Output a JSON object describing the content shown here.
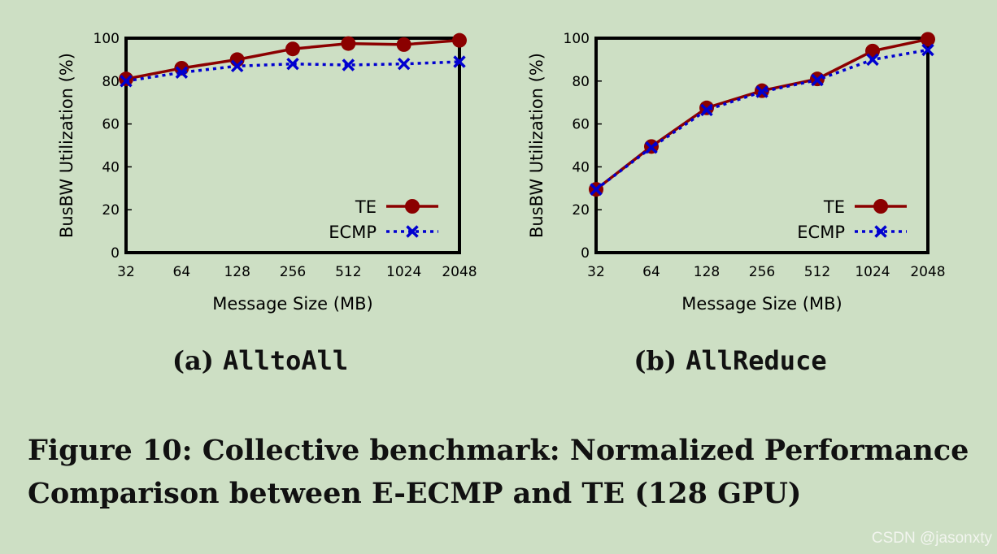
{
  "chart_data": [
    {
      "type": "line",
      "subtitle_prefix": "(a)",
      "subtitle_name": "AlltoAll",
      "xlabel": "Message Size (MB)",
      "ylabel": "BusBW Utilization (%)",
      "categories": [
        "32",
        "64",
        "128",
        "256",
        "512",
        "1024",
        "2048"
      ],
      "ylim": [
        0,
        100
      ],
      "yticks": [
        "0",
        "20",
        "40",
        "60",
        "80",
        "100"
      ],
      "legend_position": "bottom-right",
      "grid": false,
      "series": [
        {
          "name": "TE",
          "values": [
            81,
            86,
            90,
            95,
            97.5,
            97,
            99
          ],
          "color": "#8b0000",
          "marker": "circle",
          "line": "solid"
        },
        {
          "name": "ECMP",
          "values": [
            80,
            84,
            87,
            88,
            87.5,
            88,
            89
          ],
          "color": "#0000d0",
          "marker": "x",
          "line": "dotted"
        }
      ]
    },
    {
      "type": "line",
      "subtitle_prefix": "(b)",
      "subtitle_name": "AllReduce",
      "xlabel": "Message Size (MB)",
      "ylabel": "BusBW Utilization (%)",
      "categories": [
        "32",
        "64",
        "128",
        "256",
        "512",
        "1024",
        "2048"
      ],
      "ylim": [
        0,
        100
      ],
      "yticks": [
        "0",
        "20",
        "40",
        "60",
        "80",
        "100"
      ],
      "legend_position": "bottom-right",
      "grid": false,
      "series": [
        {
          "name": "TE",
          "values": [
            29.5,
            49.5,
            67.5,
            75.5,
            81,
            94,
            99.5
          ],
          "color": "#8b0000",
          "marker": "circle",
          "line": "solid"
        },
        {
          "name": "ECMP",
          "values": [
            29.5,
            49,
            66.5,
            75,
            80.5,
            90,
            94.5
          ],
          "color": "#0000d0",
          "marker": "x",
          "line": "dotted"
        }
      ]
    }
  ],
  "caption": {
    "line1": "Figure 10: Collective benchmark: Normalized Performance",
    "line2": "Comparison between E-ECMP and TE (128 GPU)"
  },
  "watermark": "CSDN @jasonxty"
}
